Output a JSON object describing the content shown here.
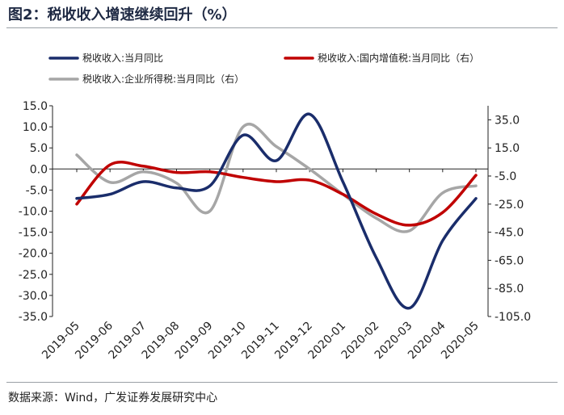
{
  "figure": {
    "title": "图2：税收收入增速继续回升（%）",
    "source": "数据来源：Wind，广发证券发展研究中心"
  },
  "chart_data": {
    "type": "line",
    "title": "图2：税收收入增速继续回升（%）",
    "categories": [
      "2019-05",
      "2019-06",
      "2019-07",
      "2019-08",
      "2019-09",
      "2019-10",
      "2019-11",
      "2019-12",
      "2020-01",
      "2020-02",
      "2020-03",
      "2020-04",
      "2020-05"
    ],
    "y_left": {
      "ylim": [
        -35,
        15
      ],
      "ticks": [
        15,
        10,
        5,
        0,
        -5,
        -10,
        -15,
        -20,
        -25,
        -30,
        -35
      ],
      "tick_labels": [
        "15.0",
        "10.0",
        "5.0",
        "0.0",
        "-5.0",
        "-10.0",
        "-15.0",
        "-20.0",
        "-25.0",
        "-30.0",
        "-35.0"
      ]
    },
    "y_right": {
      "ylim": [
        -105,
        45
      ],
      "ticks": [
        35,
        15,
        -5,
        -25,
        -45,
        -65,
        -85,
        -105
      ],
      "tick_labels": [
        "35.0",
        "15.0",
        "-5.0",
        "-25.0",
        "-45.0",
        "-65.0",
        "-85.0",
        "-105.0"
      ]
    },
    "series": [
      {
        "name": "税收收入:当月同比",
        "axis": "left",
        "color": "#1a2d6b",
        "values": [
          -7.0,
          -6.0,
          -3.0,
          -4.5,
          -4.0,
          8.0,
          2.0,
          13.0,
          -3.0,
          -21.0,
          -33.0,
          -17.0,
          -7.0
        ]
      },
      {
        "name": "税收收入:国内增值税:当月同比（右）",
        "axis": "right",
        "color": "#c00000",
        "values": [
          -25.0,
          3.0,
          2.0,
          -2.5,
          -2.0,
          -6.0,
          -9.0,
          -8.0,
          -18.0,
          -32.0,
          -40.0,
          -31.0,
          -4.5
        ]
      },
      {
        "name": "税收收入:企业所得税:当月同比（右）",
        "axis": "right",
        "color": "#a6a6a6",
        "values": [
          10.0,
          -9.5,
          -2.0,
          -10.0,
          -30.0,
          30.0,
          16.0,
          0.0,
          -18.0,
          -35.0,
          -44.0,
          -17.0,
          -12.0
        ]
      }
    ],
    "legend": "top"
  }
}
